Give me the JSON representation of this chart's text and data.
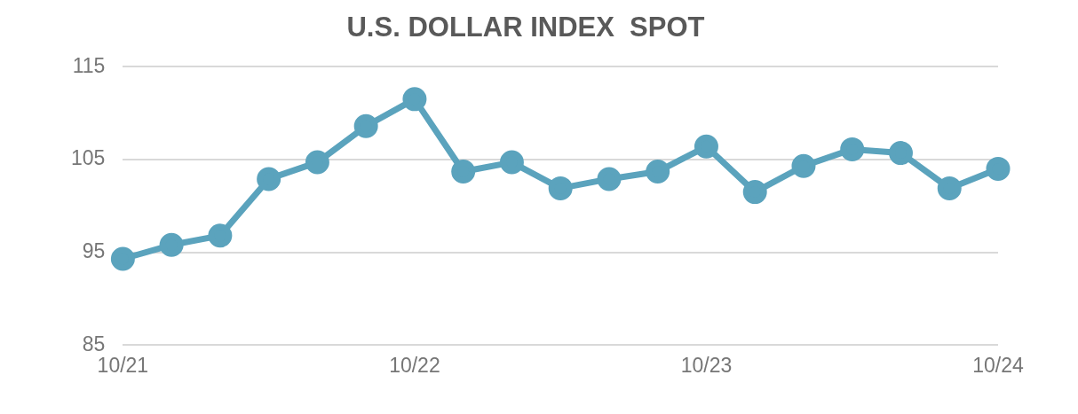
{
  "chart_data": {
    "type": "line",
    "title": "U.S. DOLLAR INDEX  SPOT",
    "categories": [
      "10/21",
      null,
      null,
      null,
      null,
      null,
      "10/22",
      null,
      null,
      null,
      null,
      null,
      "10/23",
      null,
      null,
      null,
      null,
      null,
      "10/24"
    ],
    "series": [
      {
        "color": "#5ba3bd",
        "values": [
          94.3,
          95.8,
          96.8,
          102.9,
          104.7,
          108.6,
          111.5,
          103.7,
          104.7,
          101.9,
          102.9,
          103.7,
          106.4,
          101.5,
          104.3,
          106.1,
          105.7,
          101.9,
          104.0
        ]
      }
    ],
    "ylim": [
      85,
      115
    ],
    "yticks": [
      85,
      95,
      105,
      115
    ],
    "grid": "y",
    "legend": false,
    "marker": "circle",
    "line_style": "solid"
  }
}
